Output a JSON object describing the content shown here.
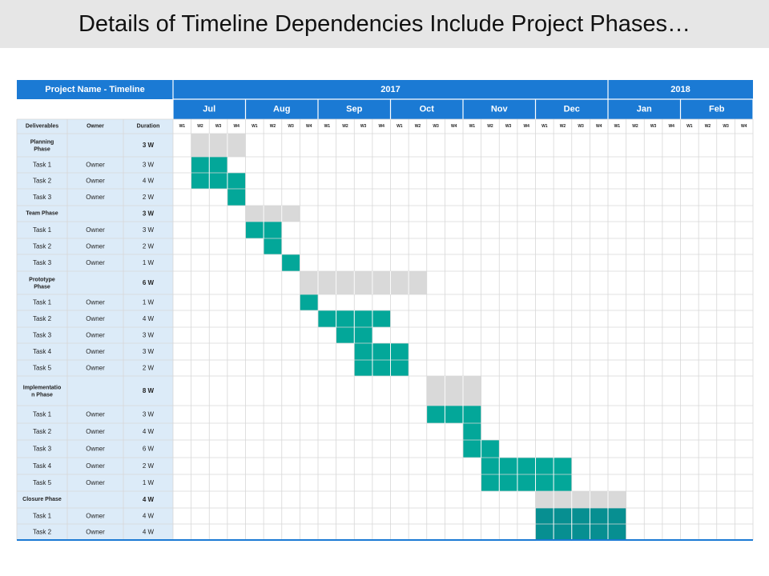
{
  "title": "Details of Timeline Dependencies Include Project Phases…",
  "colors": {
    "header_blue": "#1b7ad4",
    "left_fill": "#dcebf8",
    "phase_bar": "#d9d9d9",
    "task_bar": "#03a799",
    "task_bar_dark": "#078f91",
    "grid": "#d7d7d7"
  },
  "chart_data": {
    "type": "gantt",
    "title": "Details of Timeline Dependencies Include Project Phases…",
    "corner_label": "Project Name - Timeline",
    "column_headers": [
      "Deliverables",
      "Owner",
      "Duration"
    ],
    "years": [
      {
        "label": "2017",
        "months": 6
      },
      {
        "label": "2018",
        "months": 2
      }
    ],
    "months": [
      "Jul",
      "Aug",
      "Sep",
      "Oct",
      "Nov",
      "Dec",
      "Jan",
      "Feb"
    ],
    "week_labels": [
      "W1",
      "W2",
      "W3",
      "W4"
    ],
    "rows": [
      {
        "kind": "phase",
        "name": "Planning Phase",
        "owner": "",
        "duration": "3 W",
        "start_week": 2,
        "weeks": 3
      },
      {
        "kind": "task",
        "name": "Task 1",
        "owner": "Owner",
        "duration": "3 W",
        "start_week": 2,
        "weeks": 2
      },
      {
        "kind": "task",
        "name": "Task 2",
        "owner": "Owner",
        "duration": "4 W",
        "start_week": 2,
        "weeks": 3
      },
      {
        "kind": "task",
        "name": "Task 3",
        "owner": "Owner",
        "duration": "2 W",
        "start_week": 4,
        "weeks": 1
      },
      {
        "kind": "phase",
        "name": "Team Phase",
        "owner": "",
        "duration": "3 W",
        "start_week": 5,
        "weeks": 3
      },
      {
        "kind": "task",
        "name": "Task 1",
        "owner": "Owner",
        "duration": "3 W",
        "start_week": 5,
        "weeks": 2
      },
      {
        "kind": "task",
        "name": "Task 2",
        "owner": "Owner",
        "duration": "2 W",
        "start_week": 6,
        "weeks": 1
      },
      {
        "kind": "task",
        "name": "Task 3",
        "owner": "Owner",
        "duration": "1 W",
        "start_week": 7,
        "weeks": 1
      },
      {
        "kind": "phase",
        "name": "Prototype Phase",
        "owner": "",
        "duration": "6 W",
        "start_week": 8,
        "weeks": 7
      },
      {
        "kind": "task",
        "name": "Task 1",
        "owner": "Owner",
        "duration": "1 W",
        "start_week": 8,
        "weeks": 1
      },
      {
        "kind": "task",
        "name": "Task 2",
        "owner": "Owner",
        "duration": "4 W",
        "start_week": 9,
        "weeks": 4
      },
      {
        "kind": "task",
        "name": "Task 3",
        "owner": "Owner",
        "duration": "3 W",
        "start_week": 10,
        "weeks": 2
      },
      {
        "kind": "task",
        "name": "Task 4",
        "owner": "Owner",
        "duration": "3 W",
        "start_week": 11,
        "weeks": 3
      },
      {
        "kind": "task",
        "name": "Task 5",
        "owner": "Owner",
        "duration": "2 W",
        "start_week": 11,
        "weeks": 3
      },
      {
        "kind": "phase",
        "name": "Implementation Phase",
        "owner": "",
        "duration": "8 W",
        "start_week": 15,
        "weeks": 3
      },
      {
        "kind": "task",
        "name": "Task 1",
        "owner": "Owner",
        "duration": "3 W",
        "start_week": 15,
        "weeks": 3
      },
      {
        "kind": "task",
        "name": "Task 2",
        "owner": "Owner",
        "duration": "4 W",
        "start_week": 17,
        "weeks": 1
      },
      {
        "kind": "task",
        "name": "Task 3",
        "owner": "Owner",
        "duration": "6 W",
        "start_week": 17,
        "weeks": 2
      },
      {
        "kind": "task",
        "name": "Task 4",
        "owner": "Owner",
        "duration": "2 W",
        "start_week": 18,
        "weeks": 5
      },
      {
        "kind": "task",
        "name": "Task 5",
        "owner": "Owner",
        "duration": "1 W",
        "start_week": 18,
        "weeks": 5
      },
      {
        "kind": "phase",
        "name": "Closure Phase",
        "owner": "",
        "duration": "4 W",
        "start_week": 21,
        "weeks": 5
      },
      {
        "kind": "task",
        "name": "Task 1",
        "owner": "Owner",
        "duration": "4 W",
        "start_week": 21,
        "weeks": 5,
        "dark": true
      },
      {
        "kind": "task",
        "name": "Task 2",
        "owner": "Owner",
        "duration": "4 W",
        "start_week": 21,
        "weeks": 5,
        "dark": true
      }
    ]
  }
}
